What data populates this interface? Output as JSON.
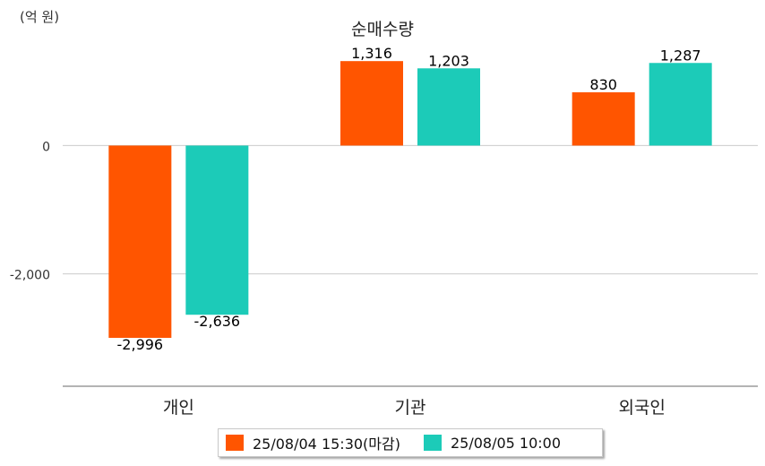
{
  "unit_label": "(억 원)",
  "colors": {
    "series1": "#ff5500",
    "series2": "#1ccbb8",
    "grid": "#cccccc",
    "axis": "#888888"
  },
  "chart_data": {
    "type": "bar",
    "title": "순매수량",
    "categories": [
      "개인",
      "기관",
      "외국인"
    ],
    "series": [
      {
        "name": "25/08/04 15:30(마감)",
        "values": [
          -2996,
          1316,
          830
        ]
      },
      {
        "name": "25/08/05 10:00",
        "values": [
          -2636,
          1203,
          1287
        ]
      }
    ],
    "value_labels": [
      [
        "-2,996",
        "1,316",
        "830"
      ],
      [
        "-2,636",
        "1,203",
        "1,287"
      ]
    ],
    "yticks": [
      0,
      -2000
    ],
    "ytick_labels": [
      "0",
      "-2,000"
    ],
    "ylim": [
      -3750,
      1500
    ],
    "grid": true,
    "legend_position": "bottom"
  }
}
